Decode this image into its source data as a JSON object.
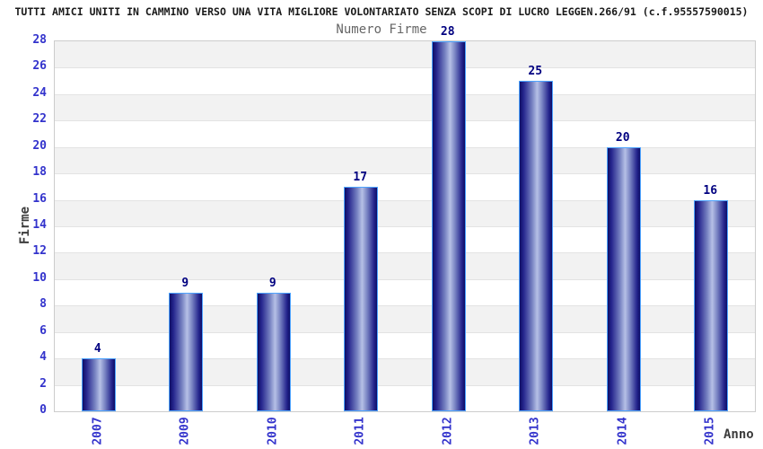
{
  "header": {
    "title": "TUTTI AMICI UNITI IN CAMMINO VERSO UNA VITA MIGLIORE VOLONTARIATO SENZA SCOPI DI LUCRO LEGGEN.266/91 (c.f.95557590015)"
  },
  "chart_data": {
    "type": "bar",
    "title": "Numero Firme",
    "categories": [
      "2007",
      "2009",
      "2010",
      "2011",
      "2012",
      "2013",
      "2014",
      "2015"
    ],
    "values": [
      4,
      9,
      9,
      17,
      28,
      25,
      20,
      16
    ],
    "xlabel": "Anno",
    "ylabel": "Firme",
    "ylim": [
      0,
      28
    ],
    "ytick_step": 2,
    "grid": true,
    "legend": "none",
    "band_pattern": "alternating gray/white every 2 units, gray on 2-4, 6-8, ... 26-28"
  },
  "colors": {
    "tick_label": "#3333cc",
    "value_label": "#000080",
    "bar_border": "#4da3ff",
    "bar_dark": "#0d0d66",
    "bar_light": "#b6c0e6",
    "band_gray": "#f2f2f2",
    "band_white": "#ffffff",
    "grid_line": "#e3e3e3",
    "plot_border": "#cccccc",
    "title_color": "#1a1a1a",
    "subtitle_color": "#666666",
    "axis_title_color": "#3c3c3c"
  }
}
